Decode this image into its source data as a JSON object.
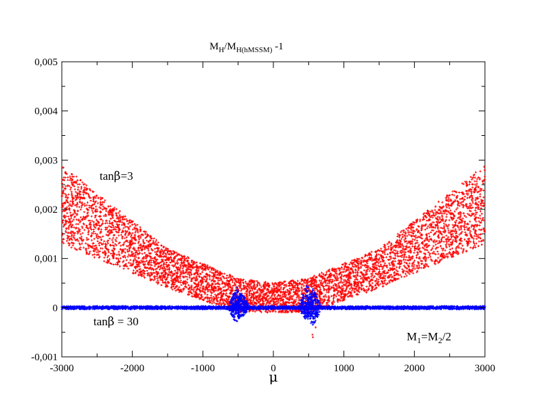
{
  "chart_data": {
    "type": "scatter",
    "title": {
      "main": "M",
      "sub1": "H",
      "slash": "/M",
      "sub2": "H(hMSSM)",
      "tail": " -1"
    },
    "xlabel": "μ",
    "ylabel": "",
    "xlim": [
      -3000,
      3000
    ],
    "ylim": [
      -0.001,
      0.005
    ],
    "x_ticks": [
      -3000,
      -2000,
      -1000,
      0,
      1000,
      2000,
      3000
    ],
    "x_tick_labels": [
      "-3000",
      "-2000",
      "-1000",
      "0",
      "1000",
      "2000",
      "3000"
    ],
    "y_ticks": [
      -0.001,
      0,
      0.001,
      0.002,
      0.003,
      0.004,
      0.005
    ],
    "y_tick_labels": [
      "-0,001",
      "0",
      "0,001",
      "0,002",
      "0,003",
      "0,004",
      "0,005"
    ],
    "grid": false,
    "series": [
      {
        "name": "tanβ=3",
        "color": "#ff0000",
        "marker": "+",
        "description_envelope": {
          "upper": [
            [
              -3000,
              0.0029
            ],
            [
              -1500,
              0.0012
            ],
            [
              -500,
              0.0006
            ],
            [
              0,
              0.0005
            ],
            [
              500,
              0.0006
            ],
            [
              1500,
              0.0012
            ],
            [
              3000,
              0.0029
            ]
          ],
          "lower": [
            [
              -3000,
              0.0013
            ],
            [
              -1500,
              0.0004
            ],
            [
              -500,
              -0.0001
            ],
            [
              0,
              -0.0001
            ],
            [
              500,
              -0.0001
            ],
            [
              1500,
              0.0004
            ],
            [
              3000,
              0.0013
            ]
          ]
        }
      },
      {
        "name": "tanβ = 30",
        "color": "#0000ff",
        "marker": "+",
        "baseline": 0.0,
        "spikes": [
          {
            "x": -520,
            "y_max": 0.00045,
            "y_min": -0.00035
          },
          {
            "x": -450,
            "y_max": 0.0003,
            "y_min": -0.0002
          },
          {
            "x": 480,
            "y_max": 0.0005,
            "y_min": -0.0003
          },
          {
            "x": 560,
            "y_max": 0.0004,
            "y_min": -0.0004
          }
        ]
      }
    ],
    "annotations": {
      "tan3": {
        "pre": "tan",
        "greek": "β",
        "post": "=3"
      },
      "tan30": {
        "pre": "tan",
        "greek": "β",
        "post": " = 30"
      },
      "mass": {
        "a": "M",
        "a_sub": "1",
        "eq": "=M",
        "b_sub": "2",
        "tail": "/2"
      }
    },
    "colors": {
      "red": "#ff0000",
      "blue": "#0000ff",
      "axis": "#000000"
    }
  }
}
